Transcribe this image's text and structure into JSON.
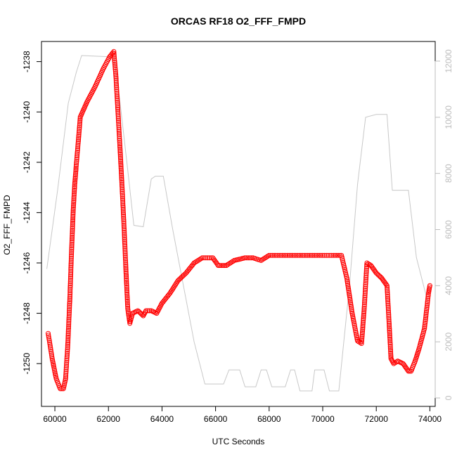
{
  "chart_data": {
    "type": "scatter",
    "title": "ORCAS RF18 O2_FFF_FMPD",
    "xlabel": "UTC Seconds",
    "ylabel": "O2_FFF_FMPD",
    "xlim": [
      59500,
      74200
    ],
    "ylim": [
      -1251.7,
      -1237.2
    ],
    "y2lim": [
      -300,
      12700
    ],
    "x_ticks": [
      60000,
      62000,
      64000,
      66000,
      68000,
      70000,
      72000,
      74000
    ],
    "x_tick_labels": [
      "60000",
      "62000",
      "64000",
      "66000",
      "68000",
      "70000",
      "72000",
      "74000"
    ],
    "y_ticks": [
      -1250,
      -1248,
      -1246,
      -1244,
      -1242,
      -1240,
      -1238
    ],
    "y_tick_labels": [
      "-1250",
      "-1248",
      "-1246",
      "-1244",
      "-1242",
      "-1240",
      "-1238"
    ],
    "y2_ticks": [
      0,
      2000,
      4000,
      6000,
      8000,
      10000,
      12000
    ],
    "y2_tick_labels": [
      "0",
      "2000",
      "4000",
      "6000",
      "8000",
      "10000",
      "12000"
    ],
    "grid": false,
    "series": [
      {
        "marker": "open-circle",
        "color": "#ff0000",
        "axis": "left",
        "points": [
          [
            59750,
            -1248.8
          ],
          [
            59900,
            -1249.8
          ],
          [
            60050,
            -1250.6
          ],
          [
            60200,
            -1251.0
          ],
          [
            60320,
            -1251.0
          ],
          [
            60400,
            -1250.6
          ],
          [
            60480,
            -1249.3
          ],
          [
            60560,
            -1247.4
          ],
          [
            60620,
            -1245.6
          ],
          [
            60680,
            -1244.0
          ],
          [
            60740,
            -1242.9
          ],
          [
            60800,
            -1242.1
          ],
          [
            60880,
            -1241.1
          ],
          [
            60950,
            -1240.2
          ],
          [
            61200,
            -1239.6
          ],
          [
            61500,
            -1239.0
          ],
          [
            61800,
            -1238.3
          ],
          [
            62050,
            -1237.8
          ],
          [
            62200,
            -1237.6
          ],
          [
            62280,
            -1238.6
          ],
          [
            62350,
            -1239.9
          ],
          [
            62420,
            -1241.2
          ],
          [
            62500,
            -1242.8
          ],
          [
            62580,
            -1244.5
          ],
          [
            62650,
            -1246.2
          ],
          [
            62720,
            -1247.8
          ],
          [
            62800,
            -1248.4
          ],
          [
            62900,
            -1248.0
          ],
          [
            63100,
            -1247.9
          ],
          [
            63300,
            -1248.1
          ],
          [
            63400,
            -1247.9
          ],
          [
            63600,
            -1247.9
          ],
          [
            63800,
            -1248.0
          ],
          [
            64000,
            -1247.6
          ],
          [
            64300,
            -1247.2
          ],
          [
            64600,
            -1246.7
          ],
          [
            64900,
            -1246.4
          ],
          [
            65200,
            -1246.0
          ],
          [
            65500,
            -1245.8
          ],
          [
            65900,
            -1245.8
          ],
          [
            66100,
            -1246.1
          ],
          [
            66400,
            -1246.1
          ],
          [
            66700,
            -1245.9
          ],
          [
            67100,
            -1245.8
          ],
          [
            67400,
            -1245.8
          ],
          [
            67700,
            -1245.9
          ],
          [
            68000,
            -1245.7
          ],
          [
            68500,
            -1245.7
          ],
          [
            69000,
            -1245.7
          ],
          [
            69500,
            -1245.7
          ],
          [
            70000,
            -1245.7
          ],
          [
            70400,
            -1245.7
          ],
          [
            70700,
            -1245.7
          ],
          [
            70900,
            -1246.6
          ],
          [
            71100,
            -1248.0
          ],
          [
            71300,
            -1249.1
          ],
          [
            71450,
            -1249.2
          ],
          [
            71550,
            -1247.8
          ],
          [
            71650,
            -1246.0
          ],
          [
            71800,
            -1246.1
          ],
          [
            72000,
            -1246.4
          ],
          [
            72200,
            -1246.6
          ],
          [
            72400,
            -1246.9
          ],
          [
            72480,
            -1248.4
          ],
          [
            72550,
            -1249.8
          ],
          [
            72650,
            -1250.0
          ],
          [
            72800,
            -1249.9
          ],
          [
            73000,
            -1250.0
          ],
          [
            73200,
            -1250.3
          ],
          [
            73300,
            -1250.3
          ],
          [
            73450,
            -1249.9
          ],
          [
            73600,
            -1249.4
          ],
          [
            73800,
            -1248.6
          ],
          [
            73950,
            -1247.2
          ],
          [
            74000,
            -1246.9
          ]
        ]
      },
      {
        "marker": "line",
        "color": "#c8c8c8",
        "axis": "right",
        "points": [
          [
            59700,
            4600
          ],
          [
            60100,
            7400
          ],
          [
            60500,
            10500
          ],
          [
            60800,
            11600
          ],
          [
            61000,
            12200
          ],
          [
            62200,
            12150
          ],
          [
            62400,
            10800
          ],
          [
            62700,
            8300
          ],
          [
            62950,
            6150
          ],
          [
            63300,
            6100
          ],
          [
            63600,
            7800
          ],
          [
            63750,
            7900
          ],
          [
            64050,
            7900
          ],
          [
            64400,
            6000
          ],
          [
            64800,
            4000
          ],
          [
            65200,
            2000
          ],
          [
            65600,
            500
          ],
          [
            66300,
            500
          ],
          [
            66500,
            1000
          ],
          [
            66900,
            1000
          ],
          [
            67100,
            400
          ],
          [
            67500,
            400
          ],
          [
            67700,
            1000
          ],
          [
            67900,
            1000
          ],
          [
            68100,
            400
          ],
          [
            68600,
            400
          ],
          [
            68800,
            1000
          ],
          [
            68950,
            1000
          ],
          [
            69150,
            250
          ],
          [
            69600,
            250
          ],
          [
            69700,
            1000
          ],
          [
            70050,
            1000
          ],
          [
            70250,
            250
          ],
          [
            70600,
            250
          ],
          [
            71000,
            4000
          ],
          [
            71300,
            7600
          ],
          [
            71600,
            10000
          ],
          [
            72000,
            10100
          ],
          [
            72400,
            10100
          ],
          [
            72600,
            7400
          ],
          [
            73200,
            7400
          ],
          [
            73500,
            5000
          ],
          [
            73900,
            3500
          ]
        ]
      }
    ]
  }
}
